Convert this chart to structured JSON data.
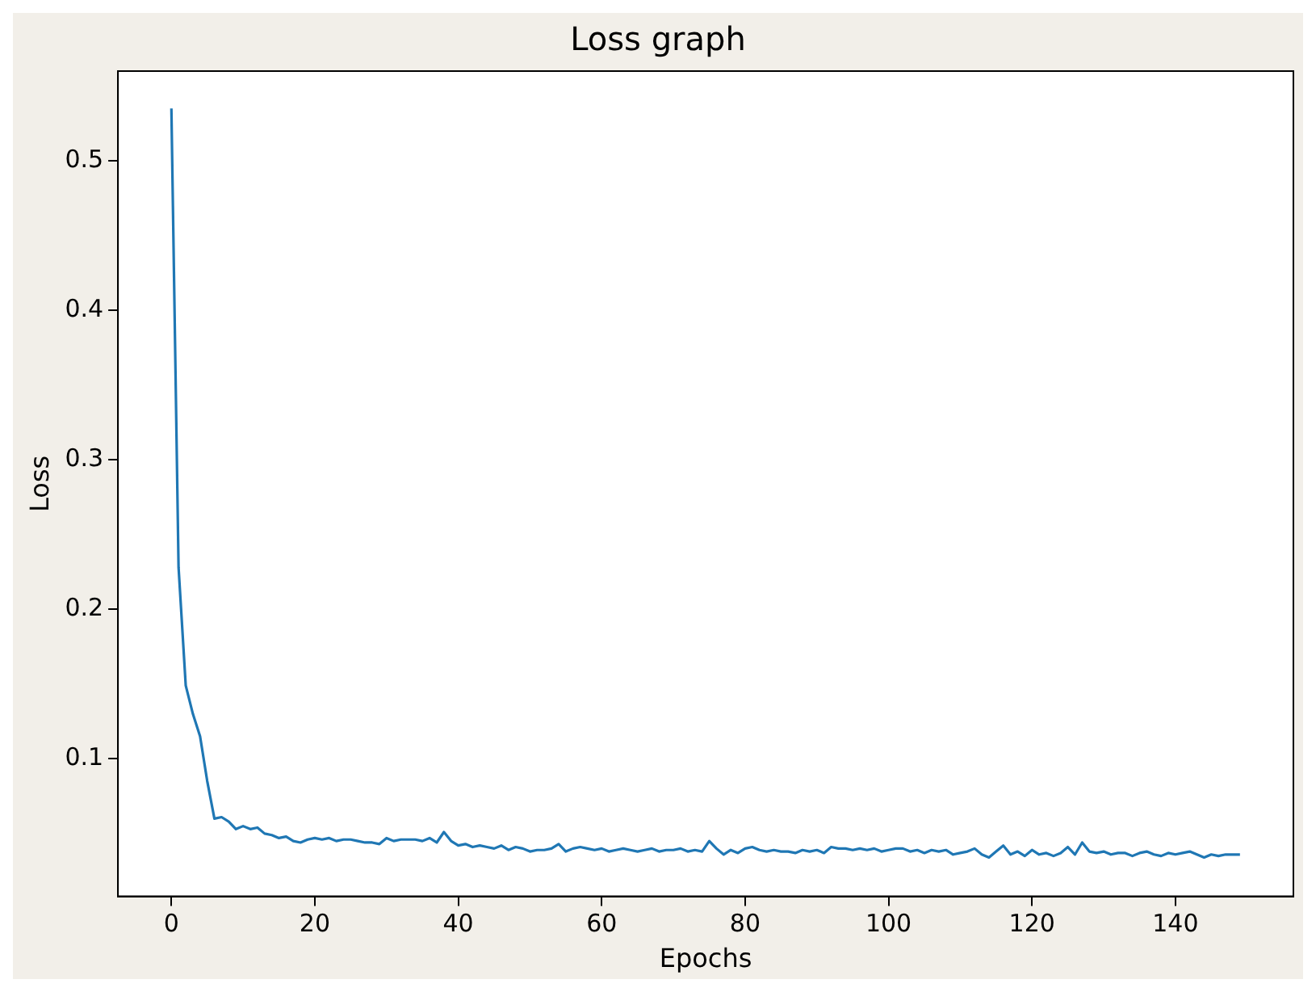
{
  "chart_data": {
    "type": "line",
    "title": "Loss graph",
    "xlabel": "Epochs",
    "ylabel": "Loss",
    "x": [
      0,
      1,
      2,
      3,
      4,
      5,
      6,
      7,
      8,
      9,
      10,
      11,
      12,
      13,
      14,
      15,
      16,
      17,
      18,
      19,
      20,
      21,
      22,
      23,
      24,
      25,
      26,
      27,
      28,
      29,
      30,
      31,
      32,
      33,
      34,
      35,
      36,
      37,
      38,
      39,
      40,
      41,
      42,
      43,
      44,
      45,
      46,
      47,
      48,
      49,
      50,
      51,
      52,
      53,
      54,
      55,
      56,
      57,
      58,
      59,
      60,
      61,
      62,
      63,
      64,
      65,
      66,
      67,
      68,
      69,
      70,
      71,
      72,
      73,
      74,
      75,
      76,
      77,
      78,
      79,
      80,
      81,
      82,
      83,
      84,
      85,
      86,
      87,
      88,
      89,
      90,
      91,
      92,
      93,
      94,
      95,
      96,
      97,
      98,
      99,
      100,
      101,
      102,
      103,
      104,
      105,
      106,
      107,
      108,
      109,
      110,
      111,
      112,
      113,
      114,
      115,
      116,
      117,
      118,
      119,
      120,
      121,
      122,
      123,
      124,
      125,
      126,
      127,
      128,
      129,
      130,
      131,
      132,
      133,
      134,
      135,
      136,
      137,
      138,
      139,
      140,
      141,
      142,
      143,
      144,
      145,
      146,
      147,
      148,
      149
    ],
    "series": [
      {
        "color": "#1f77b4",
        "values": [
          0.535,
          0.228,
          0.149,
          0.13,
          0.115,
          0.085,
          0.06,
          0.061,
          0.058,
          0.053,
          0.055,
          0.053,
          0.054,
          0.05,
          0.049,
          0.047,
          0.048,
          0.045,
          0.044,
          0.046,
          0.047,
          0.046,
          0.047,
          0.045,
          0.046,
          0.046,
          0.045,
          0.044,
          0.044,
          0.043,
          0.047,
          0.045,
          0.046,
          0.046,
          0.046,
          0.045,
          0.047,
          0.044,
          0.051,
          0.045,
          0.042,
          0.043,
          0.041,
          0.042,
          0.041,
          0.04,
          0.042,
          0.039,
          0.041,
          0.04,
          0.038,
          0.039,
          0.039,
          0.04,
          0.043,
          0.038,
          0.04,
          0.041,
          0.04,
          0.039,
          0.04,
          0.038,
          0.039,
          0.04,
          0.039,
          0.038,
          0.039,
          0.04,
          0.038,
          0.039,
          0.039,
          0.04,
          0.038,
          0.039,
          0.038,
          0.045,
          0.04,
          0.036,
          0.039,
          0.037,
          0.04,
          0.041,
          0.039,
          0.038,
          0.039,
          0.038,
          0.038,
          0.037,
          0.039,
          0.038,
          0.039,
          0.037,
          0.041,
          0.04,
          0.04,
          0.039,
          0.04,
          0.039,
          0.04,
          0.038,
          0.039,
          0.04,
          0.04,
          0.038,
          0.039,
          0.037,
          0.039,
          0.038,
          0.039,
          0.036,
          0.037,
          0.038,
          0.04,
          0.036,
          0.034,
          0.038,
          0.042,
          0.036,
          0.038,
          0.035,
          0.039,
          0.036,
          0.037,
          0.035,
          0.037,
          0.041,
          0.036,
          0.044,
          0.038,
          0.037,
          0.038,
          0.036,
          0.037,
          0.037,
          0.035,
          0.037,
          0.038,
          0.036,
          0.035,
          0.037,
          0.036,
          0.037,
          0.038,
          0.036,
          0.034,
          0.036,
          0.035,
          0.036,
          0.036,
          0.036
        ]
      }
    ],
    "xlim": [
      -7.45,
      156.45
    ],
    "xticks": [
      0,
      20,
      40,
      60,
      80,
      100,
      120,
      140
    ],
    "ylim": [
      0.008,
      0.56
    ],
    "yticks": [
      0.1,
      0.2,
      0.3,
      0.4,
      0.5
    ],
    "grid": false,
    "legend": false,
    "marker": "none",
    "line_style": "solid"
  }
}
